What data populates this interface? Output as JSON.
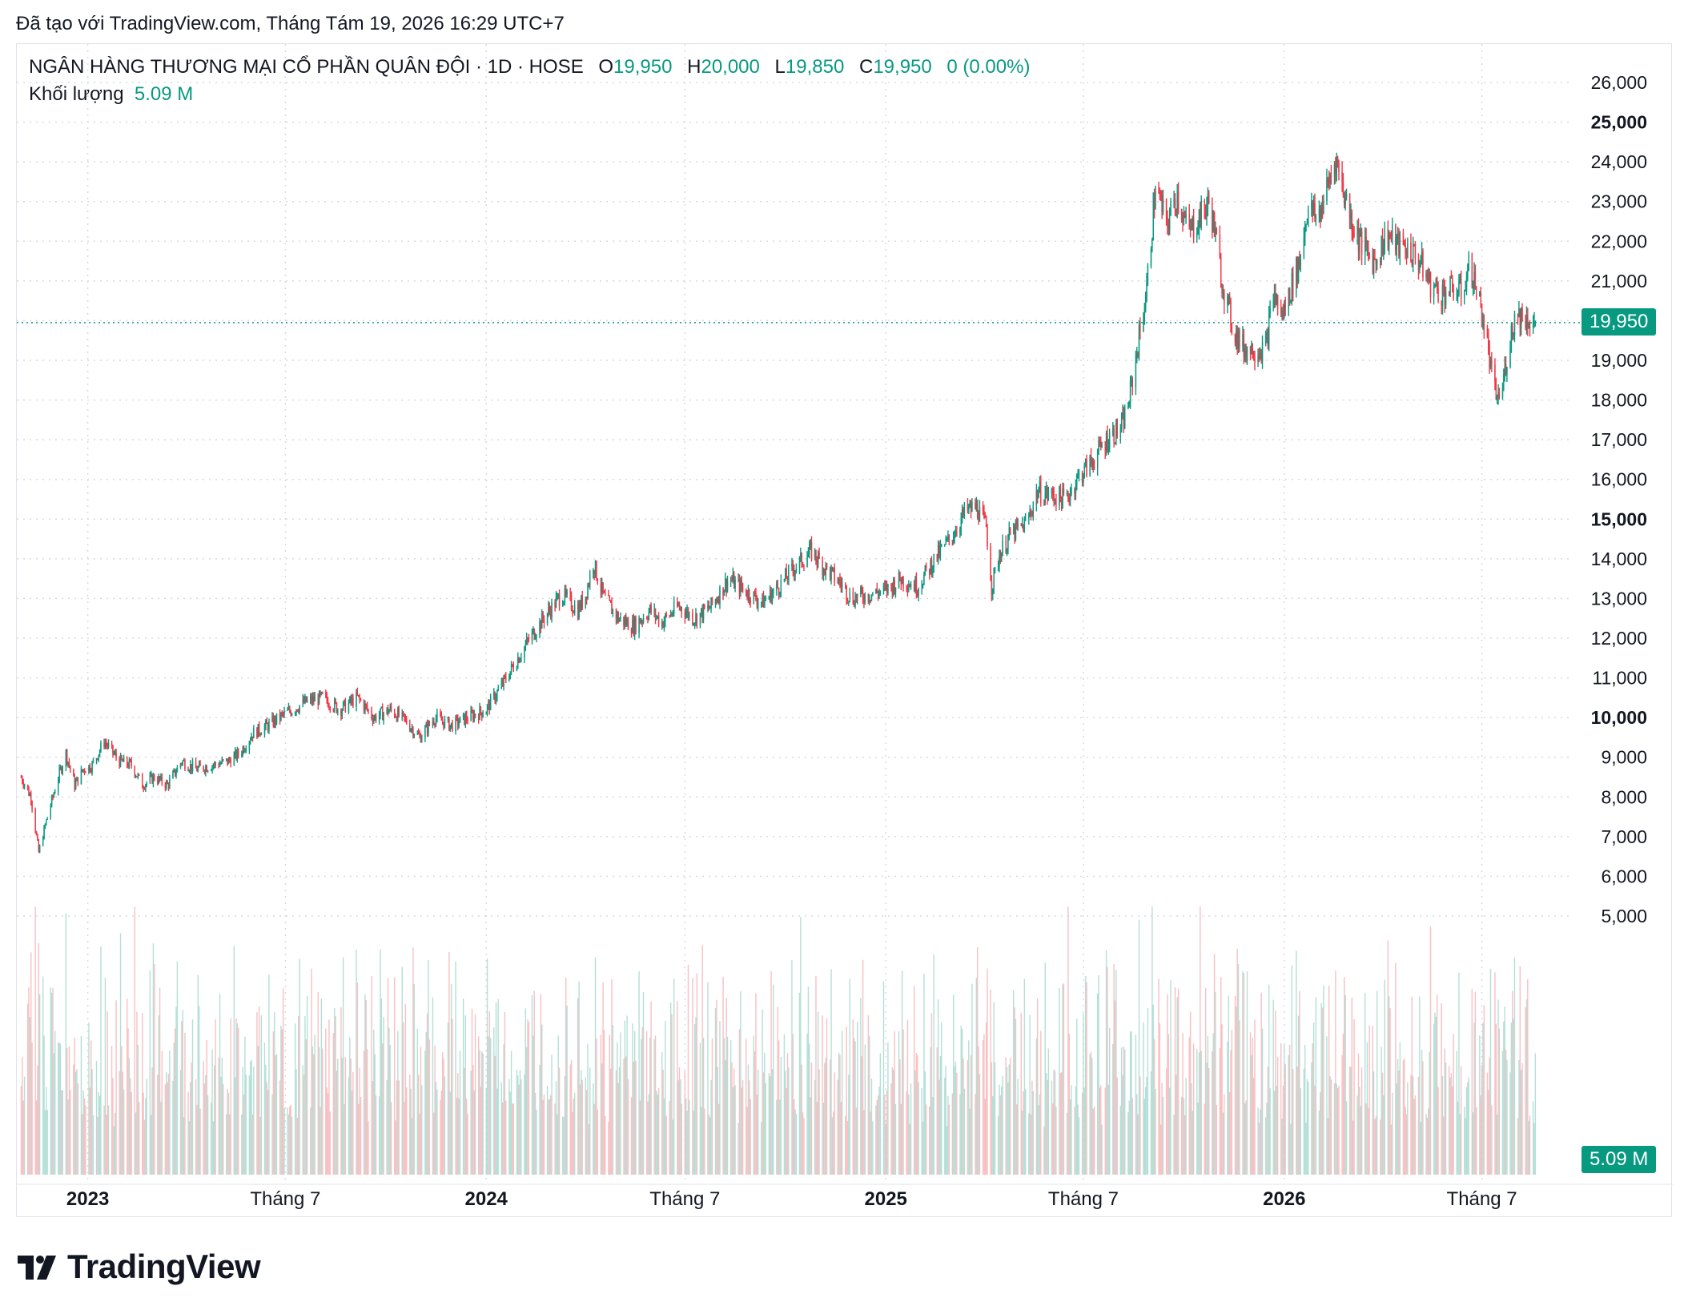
{
  "caption": "Đã tạo với TradingView.com, Tháng Tám 19, 2026 16:29 UTC+7",
  "legend": {
    "symbol": "NGÂN HÀNG THƯƠNG MẠI CỔ PHẦN QUÂN ĐỘI · 1D · HOSE",
    "o_label": "O",
    "o_value": "19,950",
    "h_label": "H",
    "h_value": "20,000",
    "l_label": "L",
    "l_value": "19,850",
    "c_label": "C",
    "c_value": "19,950",
    "change": "0 (0.00%)",
    "volume_label": "Khối lượng",
    "volume_value": "5.09 M"
  },
  "price_tag": "19,950",
  "volume_tag": "5.09 M",
  "brand": "TradingView",
  "colors": {
    "up": "#089981",
    "down": "#f23645",
    "vol_up": "#a7d9cf",
    "vol_down": "#f7b5b9",
    "grid": "#d7dae1",
    "text": "#131722"
  },
  "icons": {
    "logo": "tradingview-logo-icon"
  },
  "chart_data": {
    "type": "candlestick",
    "interval": "1D",
    "y_ticks": [
      5000,
      6000,
      7000,
      8000,
      9000,
      10000,
      11000,
      12000,
      13000,
      14000,
      15000,
      16000,
      17000,
      18000,
      19000,
      20000,
      21000,
      22000,
      23000,
      24000,
      25000,
      26000
    ],
    "y_tick_labels": [
      "5,000",
      "6,000",
      "7,000",
      "8,000",
      "9,000",
      "10,000",
      "11,000",
      "12,000",
      "13,000",
      "14,000",
      "15,000",
      "16,000",
      "17,000",
      "18,000",
      "19,000",
      "",
      "21,000",
      "22,000",
      "23,000",
      "24,000",
      "25,000",
      "26,000"
    ],
    "y_bold": [
      "10,000",
      "15,000",
      "25,000"
    ],
    "ylim": [
      4700,
      26300
    ],
    "x_labels": [
      {
        "text": "2023",
        "date": "2023-01-01",
        "bold": true
      },
      {
        "text": "Tháng 7",
        "date": "2023-07-01",
        "bold": false
      },
      {
        "text": "2024",
        "date": "2024-01-01",
        "bold": true
      },
      {
        "text": "Tháng 7",
        "date": "2024-07-01",
        "bold": false
      },
      {
        "text": "2025",
        "date": "2025-01-01",
        "bold": true
      },
      {
        "text": "Tháng 7",
        "date": "2025-07-01",
        "bold": false
      },
      {
        "text": "2026",
        "date": "2026-01-01",
        "bold": true
      },
      {
        "text": "Tháng 7",
        "date": "2026-07-01",
        "bold": false
      }
    ],
    "xlim": [
      "2022-10-28",
      "2026-09-20"
    ],
    "last_price": 19950,
    "last_volume": "5.09 M",
    "price_path": [
      [
        "2022-11-01",
        8500
      ],
      [
        "2022-11-10",
        8000
      ],
      [
        "2022-11-17",
        6600
      ],
      [
        "2022-11-25",
        7500
      ],
      [
        "2022-12-05",
        8500
      ],
      [
        "2022-12-12",
        9100
      ],
      [
        "2022-12-20",
        8300
      ],
      [
        "2022-12-28",
        8700
      ],
      [
        "2023-01-05",
        8800
      ],
      [
        "2023-01-16",
        9400
      ],
      [
        "2023-01-30",
        8900
      ],
      [
        "2023-02-10",
        8800
      ],
      [
        "2023-02-20",
        8300
      ],
      [
        "2023-03-03",
        8500
      ],
      [
        "2023-03-15",
        8300
      ],
      [
        "2023-03-28",
        8900
      ],
      [
        "2023-04-10",
        8700
      ],
      [
        "2023-04-25",
        8800
      ],
      [
        "2023-05-10",
        8900
      ],
      [
        "2023-05-20",
        9100
      ],
      [
        "2023-06-01",
        9600
      ],
      [
        "2023-06-15",
        9800
      ],
      [
        "2023-07-01",
        10100
      ],
      [
        "2023-07-20",
        10400
      ],
      [
        "2023-08-05",
        10500
      ],
      [
        "2023-08-20",
        10200
      ],
      [
        "2023-09-05",
        10500
      ],
      [
        "2023-09-20",
        10000
      ],
      [
        "2023-10-05",
        10200
      ],
      [
        "2023-10-20",
        9900
      ],
      [
        "2023-11-01",
        9500
      ],
      [
        "2023-11-15",
        10000
      ],
      [
        "2023-11-30",
        9800
      ],
      [
        "2023-12-15",
        10000
      ],
      [
        "2024-01-01",
        10200
      ],
      [
        "2024-01-15",
        10800
      ],
      [
        "2024-01-30",
        11500
      ],
      [
        "2024-02-10",
        12000
      ],
      [
        "2024-02-25",
        12600
      ],
      [
        "2024-03-10",
        13100
      ],
      [
        "2024-03-25",
        12700
      ],
      [
        "2024-04-01",
        13100
      ],
      [
        "2024-04-08",
        13900
      ],
      [
        "2024-04-18",
        13000
      ],
      [
        "2024-05-01",
        12500
      ],
      [
        "2024-05-15",
        12300
      ],
      [
        "2024-05-30",
        12700
      ],
      [
        "2024-06-10",
        12400
      ],
      [
        "2024-06-25",
        12800
      ],
      [
        "2024-07-10",
        12500
      ],
      [
        "2024-07-25",
        12800
      ],
      [
        "2024-08-10",
        13500
      ],
      [
        "2024-08-25",
        13200
      ],
      [
        "2024-09-10",
        12900
      ],
      [
        "2024-09-25",
        13300
      ],
      [
        "2024-10-10",
        13800
      ],
      [
        "2024-10-25",
        14200
      ],
      [
        "2024-11-05",
        13800
      ],
      [
        "2024-11-20",
        13400
      ],
      [
        "2024-12-01",
        13000
      ],
      [
        "2024-12-15",
        13100
      ],
      [
        "2025-01-01",
        13200
      ],
      [
        "2025-01-15",
        13500
      ],
      [
        "2025-01-30",
        13300
      ],
      [
        "2025-02-15",
        14000
      ],
      [
        "2025-03-01",
        14500
      ],
      [
        "2025-03-15",
        15200
      ],
      [
        "2025-03-25",
        15300
      ],
      [
        "2025-04-03",
        14800
      ],
      [
        "2025-04-08",
        13300
      ],
      [
        "2025-04-15",
        14100
      ],
      [
        "2025-04-25",
        14600
      ],
      [
        "2025-05-10",
        14900
      ],
      [
        "2025-05-20",
        15700
      ],
      [
        "2025-06-01",
        15600
      ],
      [
        "2025-06-15",
        15500
      ],
      [
        "2025-06-25",
        16000
      ],
      [
        "2025-07-10",
        16500
      ],
      [
        "2025-07-25",
        17100
      ],
      [
        "2025-08-05",
        17300
      ],
      [
        "2025-08-12",
        18000
      ],
      [
        "2025-08-20",
        19400
      ],
      [
        "2025-08-28",
        20800
      ],
      [
        "2025-09-05",
        23400
      ],
      [
        "2025-09-15",
        22400
      ],
      [
        "2025-09-25",
        23200
      ],
      [
        "2025-10-05",
        22200
      ],
      [
        "2025-10-15",
        22600
      ],
      [
        "2025-10-25",
        23000
      ],
      [
        "2025-11-05",
        21000
      ],
      [
        "2025-11-15",
        19800
      ],
      [
        "2025-11-25",
        19300
      ],
      [
        "2025-12-05",
        19300
      ],
      [
        "2025-12-15",
        19300
      ],
      [
        "2025-12-22",
        20700
      ],
      [
        "2025-12-30",
        20100
      ],
      [
        "2026-01-08",
        20900
      ],
      [
        "2026-01-15",
        21500
      ],
      [
        "2026-01-22",
        22800
      ],
      [
        "2026-02-01",
        22600
      ],
      [
        "2026-02-10",
        23400
      ],
      [
        "2026-02-17",
        24100
      ],
      [
        "2026-02-25",
        23200
      ],
      [
        "2026-03-05",
        22400
      ],
      [
        "2026-03-15",
        21800
      ],
      [
        "2026-03-25",
        21500
      ],
      [
        "2026-04-05",
        22200
      ],
      [
        "2026-04-15",
        21900
      ],
      [
        "2026-04-25",
        21800
      ],
      [
        "2026-05-05",
        21500
      ],
      [
        "2026-05-15",
        20900
      ],
      [
        "2026-05-25",
        20700
      ],
      [
        "2026-06-05",
        20800
      ],
      [
        "2026-06-12",
        20700
      ],
      [
        "2026-06-20",
        21400
      ],
      [
        "2026-06-28",
        20600
      ],
      [
        "2026-07-05",
        19600
      ],
      [
        "2026-07-12",
        18200
      ],
      [
        "2026-07-18",
        18000
      ],
      [
        "2026-07-25",
        19300
      ],
      [
        "2026-08-01",
        20200
      ],
      [
        "2026-08-08",
        20100
      ],
      [
        "2026-08-19",
        19950
      ]
    ]
  }
}
